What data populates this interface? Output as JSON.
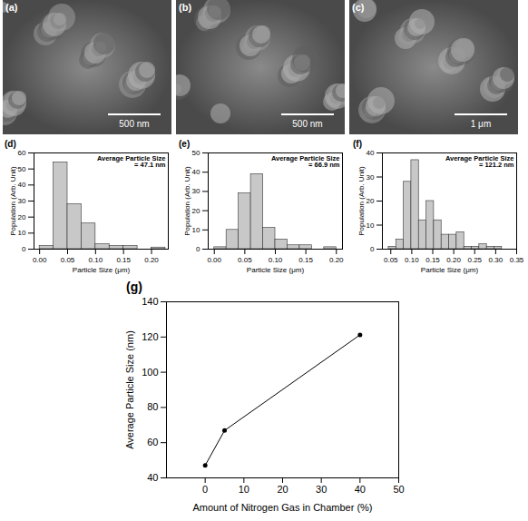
{
  "images": [
    {
      "panel_label": "(a)",
      "scale_bar": "500 nm"
    },
    {
      "panel_label": "(b)",
      "scale_bar": "500 nm"
    },
    {
      "panel_label": "(c)",
      "scale_bar": "1 μm"
    }
  ],
  "chart_data": [
    {
      "type": "histogram",
      "panel_label": "(d)",
      "annotation": [
        "Average Particle Size",
        "= 47.1 nm"
      ],
      "x_label": "Particle Size (μm)",
      "y_label": "Population (Arb. Unit)",
      "bins": [
        0,
        0.025,
        0.05,
        0.075,
        0.1,
        0.125,
        0.15,
        0.175,
        0.2,
        0.225
      ],
      "counts": [
        2,
        54,
        28,
        16,
        3,
        2,
        2,
        0,
        1
      ],
      "xlim": [
        -0.01,
        0.23
      ],
      "xticks": [
        {
          "value": 0,
          "label": "0.00"
        },
        {
          "value": 0.05,
          "label": "0.05"
        },
        {
          "value": 0.1,
          "label": "0.10"
        },
        {
          "value": 0.15,
          "label": "0.15"
        },
        {
          "value": 0.2,
          "label": "0.20"
        }
      ],
      "ylim": [
        0,
        60
      ],
      "yticks": [
        0,
        10,
        20,
        30,
        40,
        50,
        60
      ],
      "color": "#c8c8c8"
    },
    {
      "type": "histogram",
      "panel_label": "(e)",
      "annotation": [
        "Average Particle Size",
        "= 66.9 nm"
      ],
      "x_label": "Particle Size (μm)",
      "y_label": "Population (Arb. Unit)",
      "bins": [
        0,
        0.02,
        0.04,
        0.06,
        0.08,
        0.1,
        0.12,
        0.14,
        0.16,
        0.18,
        0.2
      ],
      "counts": [
        1,
        10,
        29,
        39,
        11,
        5,
        2,
        2,
        0,
        1
      ],
      "xlim": [
        -0.01,
        0.21
      ],
      "xticks": [
        {
          "value": 0,
          "label": "0.00"
        },
        {
          "value": 0.05,
          "label": "0.05"
        },
        {
          "value": 0.1,
          "label": "0.10"
        },
        {
          "value": 0.15,
          "label": "0.15"
        },
        {
          "value": 0.2,
          "label": "0.20"
        }
      ],
      "ylim": [
        0,
        50
      ],
      "yticks": [
        0,
        10,
        20,
        30,
        40,
        50
      ],
      "color": "#c8c8c8"
    },
    {
      "type": "histogram",
      "panel_label": "(f)",
      "annotation": [
        "Average Particle Size",
        "= 121.2 nm"
      ],
      "x_label": "Particle Size (μm)",
      "y_label": "Population (Arb. Unit)",
      "bins": [
        0.045,
        0.063,
        0.081,
        0.099,
        0.117,
        0.135,
        0.153,
        0.171,
        0.189,
        0.207,
        0.225,
        0.243,
        0.261,
        0.279,
        0.297,
        0.315
      ],
      "counts": [
        1,
        4,
        28,
        37,
        12,
        20,
        12,
        6,
        6,
        7,
        1,
        1,
        2,
        1,
        1
      ],
      "xlim": [
        0.03,
        0.35
      ],
      "xticks": [
        {
          "value": 0.05,
          "label": "0.05"
        },
        {
          "value": 0.1,
          "label": "0.10"
        },
        {
          "value": 0.15,
          "label": "0.15"
        },
        {
          "value": 0.2,
          "label": "0.20"
        },
        {
          "value": 0.25,
          "label": "0.25"
        },
        {
          "value": 0.3,
          "label": "0.30"
        },
        {
          "value": 0.35,
          "label": "0.35"
        }
      ],
      "ylim": [
        0,
        40
      ],
      "yticks": [
        0,
        10,
        20,
        30,
        40
      ],
      "color": "#c8c8c8"
    },
    {
      "type": "line",
      "panel_label": "(g)",
      "x_label": "Amount of Nitrogen Gas in Chamber (%)",
      "y_label": "Average Particle Size (nm)",
      "x": [
        0,
        5,
        40
      ],
      "values": [
        47.1,
        66.9,
        121.2
      ],
      "xlim": [
        -10,
        50
      ],
      "xticks": [
        0,
        10,
        20,
        30,
        40,
        50
      ],
      "ylim": [
        40,
        140
      ],
      "yticks": [
        40,
        60,
        80,
        100,
        120,
        140
      ],
      "color": "#000000",
      "marker": "circle"
    }
  ]
}
